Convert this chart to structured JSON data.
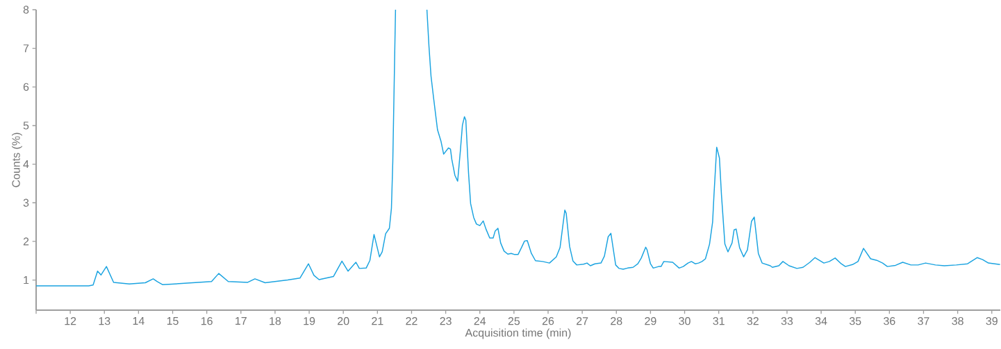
{
  "chart_data": {
    "type": "line",
    "xlabel": "Acquisition time (min)",
    "ylabel": "Counts (%)",
    "color": "#1aa3e0",
    "grid": false,
    "legend": false,
    "marker": "none",
    "line_style": "solid",
    "xlim": [
      11,
      39.25
    ],
    "ylim": [
      0.22,
      8
    ],
    "xticks": [
      {
        "value": 11,
        "label": null
      },
      12,
      13,
      14,
      15,
      16,
      17,
      18,
      19,
      20,
      21,
      22,
      23,
      24,
      25,
      26,
      27,
      28,
      29,
      30,
      31,
      32,
      33,
      34,
      35,
      36,
      37,
      38,
      39
    ],
    "yticks": [
      1,
      2,
      3,
      4,
      5,
      6,
      7,
      8
    ],
    "x": [
      11.0,
      12.02,
      12.54,
      12.67,
      12.8,
      12.9,
      13.06,
      13.27,
      13.73,
      14.2,
      14.43,
      14.55,
      14.71,
      15.43,
      16.14,
      16.35,
      16.63,
      17.2,
      17.41,
      17.71,
      18.37,
      18.73,
      18.98,
      19.14,
      19.29,
      19.71,
      19.96,
      20.14,
      20.37,
      20.47,
      20.67,
      20.78,
      20.9,
      21.06,
      21.14,
      21.24,
      21.35,
      21.41,
      21.45,
      21.51,
      21.53,
      22.0,
      22.45,
      22.51,
      22.57,
      22.65,
      22.76,
      22.86,
      22.94,
      23.08,
      23.14,
      23.18,
      23.27,
      23.35,
      23.43,
      23.49,
      23.55,
      23.59,
      23.67,
      23.73,
      23.82,
      23.9,
      24.0,
      24.1,
      24.18,
      24.29,
      24.39,
      24.45,
      24.53,
      24.61,
      24.71,
      24.82,
      24.92,
      25.02,
      25.12,
      25.22,
      25.31,
      25.39,
      25.51,
      25.63,
      25.84,
      26.04,
      26.24,
      26.35,
      26.49,
      26.53,
      26.63,
      26.73,
      26.84,
      27.04,
      27.14,
      27.24,
      27.37,
      27.55,
      27.65,
      27.76,
      27.84,
      27.98,
      28.08,
      28.2,
      28.33,
      28.49,
      28.63,
      28.73,
      28.86,
      28.9,
      29.0,
      29.08,
      29.24,
      29.31,
      29.39,
      29.65,
      29.84,
      29.96,
      30.1,
      30.2,
      30.31,
      30.41,
      30.51,
      30.61,
      30.73,
      30.82,
      30.86,
      30.94,
      31.02,
      31.08,
      31.18,
      31.27,
      31.39,
      31.45,
      31.51,
      31.61,
      31.73,
      31.84,
      31.96,
      32.04,
      32.16,
      32.27,
      32.51,
      32.57,
      32.76,
      32.88,
      33.06,
      33.29,
      33.47,
      33.67,
      33.82,
      34.08,
      34.24,
      34.41,
      34.59,
      34.71,
      34.92,
      35.08,
      35.24,
      35.45,
      35.63,
      35.8,
      35.94,
      36.18,
      36.39,
      36.63,
      36.84,
      37.06,
      37.35,
      37.61,
      37.96,
      38.29,
      38.57,
      38.73,
      38.9,
      39.24
    ],
    "values": [
      0.85,
      0.85,
      0.85,
      0.87,
      1.23,
      1.13,
      1.35,
      0.94,
      0.9,
      0.93,
      1.03,
      0.96,
      0.88,
      0.92,
      0.96,
      1.17,
      0.96,
      0.94,
      1.03,
      0.93,
      1.0,
      1.05,
      1.42,
      1.12,
      1.01,
      1.09,
      1.49,
      1.23,
      1.46,
      1.3,
      1.31,
      1.51,
      2.18,
      1.6,
      1.73,
      2.2,
      2.34,
      2.86,
      4.06,
      7.05,
      8.0,
      null,
      8.0,
      7.05,
      6.28,
      5.68,
      4.89,
      4.6,
      4.26,
      4.42,
      4.39,
      4.12,
      3.71,
      3.56,
      4.35,
      5.01,
      5.23,
      5.14,
      3.76,
      2.98,
      2.62,
      2.45,
      2.41,
      2.53,
      2.32,
      2.09,
      2.09,
      2.27,
      2.34,
      1.96,
      1.75,
      1.67,
      1.69,
      1.66,
      1.66,
      1.84,
      2.01,
      2.02,
      1.69,
      1.5,
      1.48,
      1.44,
      1.6,
      1.84,
      2.81,
      2.73,
      1.87,
      1.49,
      1.39,
      1.41,
      1.44,
      1.37,
      1.42,
      1.44,
      1.62,
      2.12,
      2.21,
      1.39,
      1.3,
      1.28,
      1.31,
      1.33,
      1.42,
      1.57,
      1.85,
      1.78,
      1.42,
      1.31,
      1.35,
      1.35,
      1.48,
      1.46,
      1.31,
      1.35,
      1.44,
      1.48,
      1.42,
      1.44,
      1.48,
      1.55,
      1.93,
      2.5,
      3.2,
      4.44,
      4.16,
      3.2,
      1.93,
      1.73,
      1.96,
      2.3,
      2.32,
      1.84,
      1.6,
      1.78,
      2.52,
      2.63,
      1.69,
      1.44,
      1.37,
      1.33,
      1.37,
      1.48,
      1.37,
      1.3,
      1.33,
      1.46,
      1.58,
      1.44,
      1.48,
      1.57,
      1.42,
      1.35,
      1.4,
      1.48,
      1.82,
      1.55,
      1.51,
      1.44,
      1.35,
      1.38,
      1.46,
      1.39,
      1.39,
      1.44,
      1.39,
      1.37,
      1.39,
      1.42,
      1.58,
      1.53,
      1.44,
      1.4
    ]
  }
}
